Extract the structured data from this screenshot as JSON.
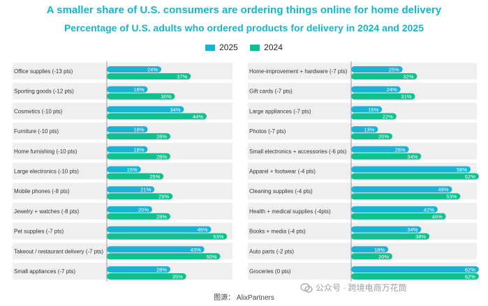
{
  "title": "A smaller share of U.S. consumers are ordering things online for home delivery",
  "subtitle": "Percentage of U.S. adults who ordered products for delivery in 2024 and 2025",
  "legend": [
    {
      "label": "2025",
      "color": "#19b3d3"
    },
    {
      "label": "2024",
      "color": "#12c08f"
    }
  ],
  "source": "图源： AlixPartners",
  "watermark": "公众号 · 跨境电商万花筒",
  "chart_data": [
    {
      "type": "bar",
      "orientation": "horizontal",
      "series": [
        {
          "name": "2025",
          "color": "#19b3d3",
          "values": [
            24,
            18,
            34,
            18,
            18,
            15,
            21,
            20,
            46,
            43,
            28
          ]
        },
        {
          "name": "2024",
          "color": "#12c08f",
          "values": [
            37,
            30,
            44,
            28,
            28,
            25,
            29,
            28,
            53,
            50,
            35
          ]
        }
      ],
      "categories": [
        "Office supplies (-13 pts)",
        "Sporting goods (-12 pts)",
        "Cosmetics (-10 pts)",
        "Furniture (-10 pts)",
        "Home furnishing (-10 pts)",
        "Large electronics (-10 pts)",
        "Mobile phones (-8 pts)",
        "Jewelry + watches (-8 pts)",
        "Pet supplies (-7 pts)",
        "Takeout / restaurant delivery (-7 pts)",
        "Small appliances (-7 pts)"
      ],
      "value_suffix": "%",
      "xlim": [
        0,
        100
      ]
    },
    {
      "type": "bar",
      "orientation": "horizontal",
      "series": [
        {
          "name": "2025",
          "color": "#19b3d3",
          "values": [
            25,
            24,
            15,
            13,
            28,
            58,
            49,
            42,
            34,
            18,
            62
          ]
        },
        {
          "name": "2024",
          "color": "#12c08f",
          "values": [
            32,
            31,
            22,
            20,
            34,
            62,
            53,
            46,
            38,
            20,
            62
          ]
        }
      ],
      "categories": [
        "Home-improvement + hardware (-7 pts)",
        "Gift cards (-7 pts)",
        "Large appliances (-7 pts)",
        "Photos (-7 pts)",
        "Small electronics + accessories (-6 pts)",
        "Apparel + footwear (-4 pts)",
        "Cleaning supplies (-4 pts)",
        "Health + medical supplies (-4pts)",
        "Books + media (-4 pts)",
        "Auto parts (-2 pts)",
        "Groceries (0 pts)"
      ],
      "value_suffix": "%",
      "xlim": [
        0,
        100
      ]
    }
  ]
}
